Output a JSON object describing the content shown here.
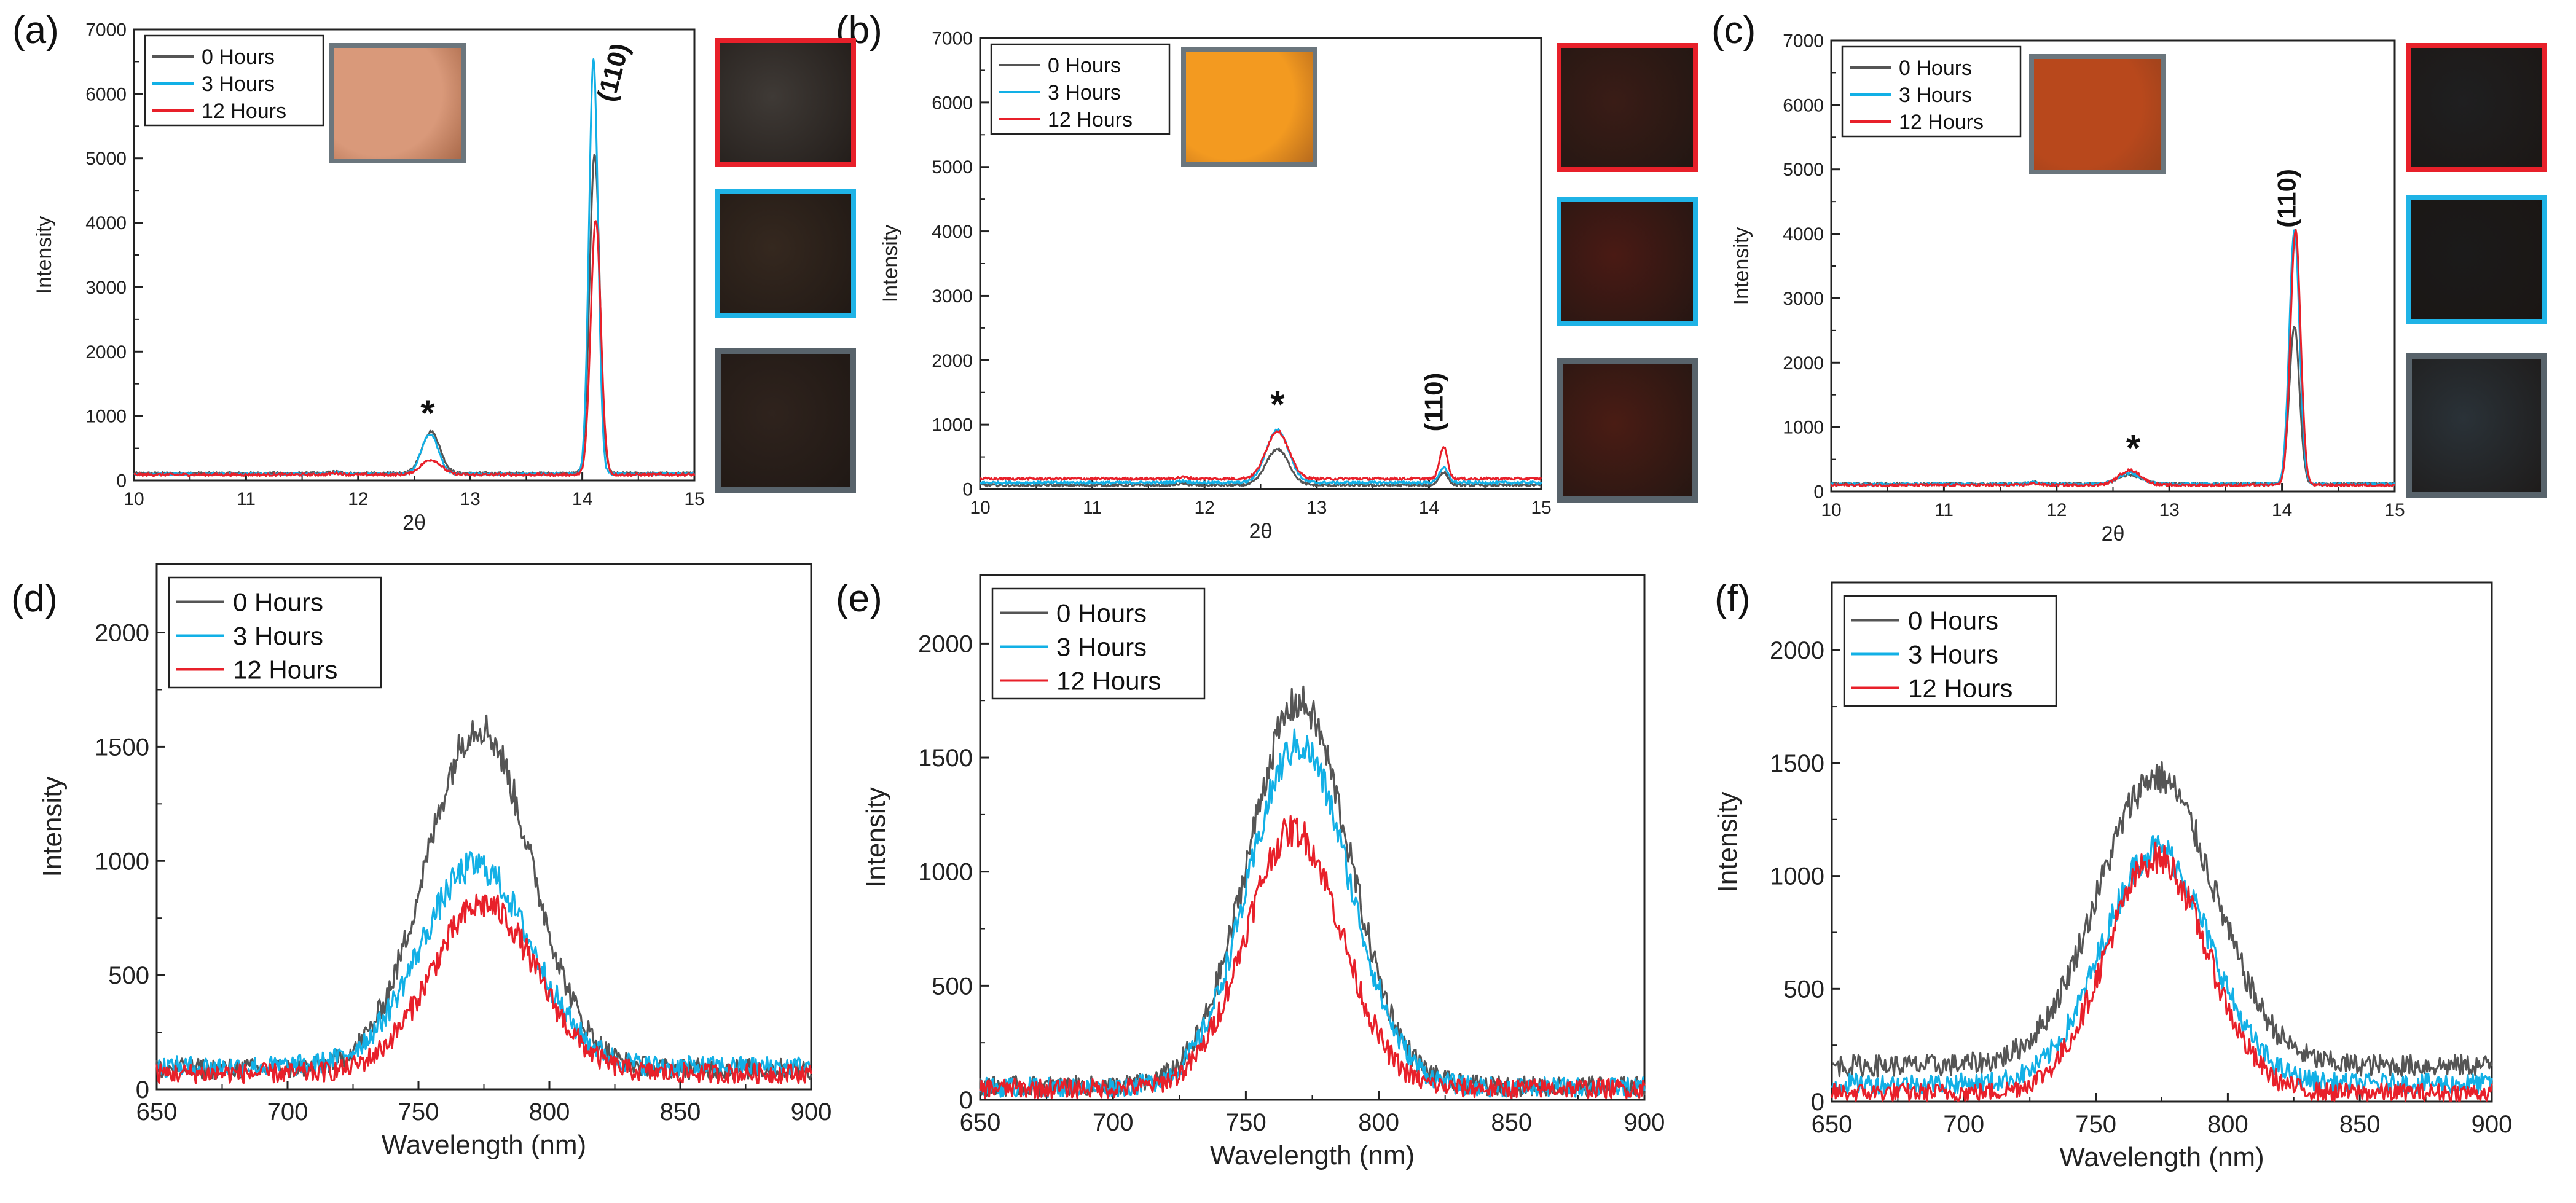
{
  "legend_labels": [
    "0 Hours",
    "3 Hours",
    "12 Hours"
  ],
  "series_colors": [
    "#555555",
    "#12b0e6",
    "#e8202a"
  ],
  "frame_colors": {
    "red": "#e8202a",
    "blue": "#1fb3e6",
    "gray": "#58636b"
  },
  "chart_data": [
    {
      "id": "a",
      "panel_label": "(a)",
      "type": "line",
      "xlabel": "2θ",
      "ylabel": "Intensity",
      "xlim": [
        10,
        15
      ],
      "ylim": [
        0,
        7000
      ],
      "xticks": [
        "10",
        "11",
        "12",
        "13",
        "14",
        "15"
      ],
      "yticks": [
        "0",
        "1000",
        "2000",
        "3000",
        "4000",
        "5000",
        "6000",
        "7000"
      ],
      "legend": [
        "0 Hours",
        "3 Hours",
        "12 Hours"
      ],
      "annotations": [
        {
          "text": "*",
          "x": 12.62,
          "y": 850
        },
        {
          "text": "(110)",
          "x": 14.35,
          "y": 6300,
          "rotate": -75
        }
      ],
      "inset_photo_color": "#d9997a",
      "sample_photos": [
        "#3f3a36",
        "#35281f",
        "#2f231d"
      ],
      "series": [
        {
          "name": "0 Hours",
          "baseline": 110,
          "peaks": [
            [
              12.65,
              650,
              0.08
            ],
            [
              14.11,
              4950,
              0.045
            ]
          ]
        },
        {
          "name": "3 Hours",
          "baseline": 100,
          "peaks": [
            [
              12.64,
              620,
              0.075
            ],
            [
              14.1,
              6450,
              0.04
            ]
          ]
        },
        {
          "name": "12 Hours",
          "baseline": 90,
          "peaks": [
            [
              12.65,
              230,
              0.09
            ],
            [
              14.12,
              3950,
              0.045
            ]
          ]
        }
      ]
    },
    {
      "id": "b",
      "panel_label": "(b)",
      "type": "line",
      "xlabel": "2θ",
      "ylabel": "Intensity",
      "xlim": [
        10,
        15
      ],
      "ylim": [
        0,
        7000
      ],
      "xticks": [
        "10",
        "11",
        "12",
        "13",
        "14",
        "15"
      ],
      "yticks": [
        "0",
        "1000",
        "2000",
        "3000",
        "4000",
        "5000",
        "6000",
        "7000"
      ],
      "legend": [
        "0 Hours",
        "3 Hours",
        "12 Hours"
      ],
      "annotations": [
        {
          "text": "*",
          "x": 12.65,
          "y": 1120
        },
        {
          "text": "(110)",
          "x": 14.12,
          "y": 1350,
          "rotate": -90
        }
      ],
      "inset_photo_color": "#f39a20",
      "sample_photos": [
        "#3a1c16",
        "#4a1a14",
        "#4a1c14"
      ],
      "series": [
        {
          "name": "0 Hours",
          "baseline": 60,
          "peaks": [
            [
              12.65,
              560,
              0.1
            ],
            [
              14.13,
              200,
              0.04
            ]
          ]
        },
        {
          "name": "3 Hours",
          "baseline": 100,
          "peaks": [
            [
              12.65,
              820,
              0.1
            ],
            [
              14.13,
              230,
              0.04
            ]
          ]
        },
        {
          "name": "12 Hours",
          "baseline": 160,
          "peaks": [
            [
              12.65,
              740,
              0.1
            ],
            [
              14.13,
              500,
              0.035
            ]
          ]
        }
      ]
    },
    {
      "id": "c",
      "panel_label": "(c)",
      "type": "line",
      "xlabel": "2θ",
      "ylabel": "Intensity",
      "xlim": [
        10,
        15
      ],
      "ylim": [
        0,
        7000
      ],
      "xticks": [
        "10",
        "11",
        "12",
        "13",
        "14",
        "15"
      ],
      "yticks": [
        "0",
        "1000",
        "2000",
        "3000",
        "4000",
        "5000",
        "6000",
        "7000"
      ],
      "legend": [
        "0 Hours",
        "3 Hours",
        "12 Hours"
      ],
      "annotations": [
        {
          "text": "*",
          "x": 12.68,
          "y": 480
        },
        {
          "text": "(110)",
          "x": 14.12,
          "y": 4550,
          "rotate": -90
        }
      ],
      "inset_photo_color": "#b8481c",
      "sample_photos": [
        "#1f1f20",
        "#1b1a1a",
        "#2a3238"
      ],
      "series": [
        {
          "name": "0 Hours",
          "baseline": 120,
          "peaks": [
            [
              12.65,
              140,
              0.1
            ],
            [
              14.11,
              2450,
              0.045
            ]
          ]
        },
        {
          "name": "3 Hours",
          "baseline": 115,
          "peaks": [
            [
              12.65,
              170,
              0.1
            ],
            [
              14.11,
              3950,
              0.045
            ]
          ]
        },
        {
          "name": "12 Hours",
          "baseline": 100,
          "peaks": [
            [
              12.65,
              230,
              0.1
            ],
            [
              14.12,
              3950,
              0.045
            ]
          ]
        }
      ]
    },
    {
      "id": "d",
      "panel_label": "(d)",
      "type": "line",
      "xlabel": "Wavelength (nm)",
      "ylabel": "Intensity",
      "xlim": [
        650,
        900
      ],
      "ylim": [
        0,
        2300
      ],
      "xticks": [
        "650",
        "700",
        "750",
        "800",
        "850",
        "900"
      ],
      "yticks": [
        "0",
        "500",
        "1000",
        "1500",
        "2000"
      ],
      "legend": [
        "0 Hours",
        "3 Hours",
        "12 Hours"
      ],
      "series": [
        {
          "name": "0 Hours",
          "baseline": 90,
          "center": 773,
          "amp": 1500,
          "sigma": 20
        },
        {
          "name": "3 Hours",
          "baseline": 100,
          "center": 772,
          "amp": 880,
          "sigma": 21
        },
        {
          "name": "12 Hours",
          "baseline": 70,
          "center": 775,
          "amp": 740,
          "sigma": 20
        }
      ]
    },
    {
      "id": "e",
      "panel_label": "(e)",
      "type": "line",
      "xlabel": "Wavelength (nm)",
      "ylabel": "Intensity",
      "xlim": [
        650,
        900
      ],
      "ylim": [
        0,
        2300
      ],
      "xticks": [
        "650",
        "700",
        "750",
        "800",
        "850",
        "900"
      ],
      "yticks": [
        "0",
        "500",
        "1000",
        "1500",
        "2000"
      ],
      "legend": [
        "0 Hours",
        "3 Hours",
        "12 Hours"
      ],
      "series": [
        {
          "name": "0 Hours",
          "baseline": 60,
          "center": 770,
          "amp": 1680,
          "sigma": 19
        },
        {
          "name": "3 Hours",
          "baseline": 55,
          "center": 770,
          "amp": 1500,
          "sigma": 19
        },
        {
          "name": "12 Hours",
          "baseline": 50,
          "center": 768,
          "amp": 1130,
          "sigma": 18
        }
      ]
    },
    {
      "id": "f",
      "panel_label": "(f)",
      "type": "line",
      "xlabel": "Wavelength (nm)",
      "ylabel": "Intensity",
      "xlim": [
        650,
        900
      ],
      "ylim": [
        0,
        2300
      ],
      "xticks": [
        "650",
        "700",
        "750",
        "800",
        "850",
        "900"
      ],
      "yticks": [
        "0",
        "500",
        "1000",
        "1500",
        "2000"
      ],
      "legend": [
        "0 Hours",
        "3 Hours",
        "12 Hours"
      ],
      "series": [
        {
          "name": "0 Hours",
          "baseline": 160,
          "center": 773,
          "amp": 1280,
          "sigma": 22
        },
        {
          "name": "3 Hours",
          "baseline": 80,
          "center": 773,
          "amp": 1040,
          "sigma": 20
        },
        {
          "name": "12 Hours",
          "baseline": 40,
          "center": 773,
          "amp": 1040,
          "sigma": 19
        }
      ]
    }
  ]
}
